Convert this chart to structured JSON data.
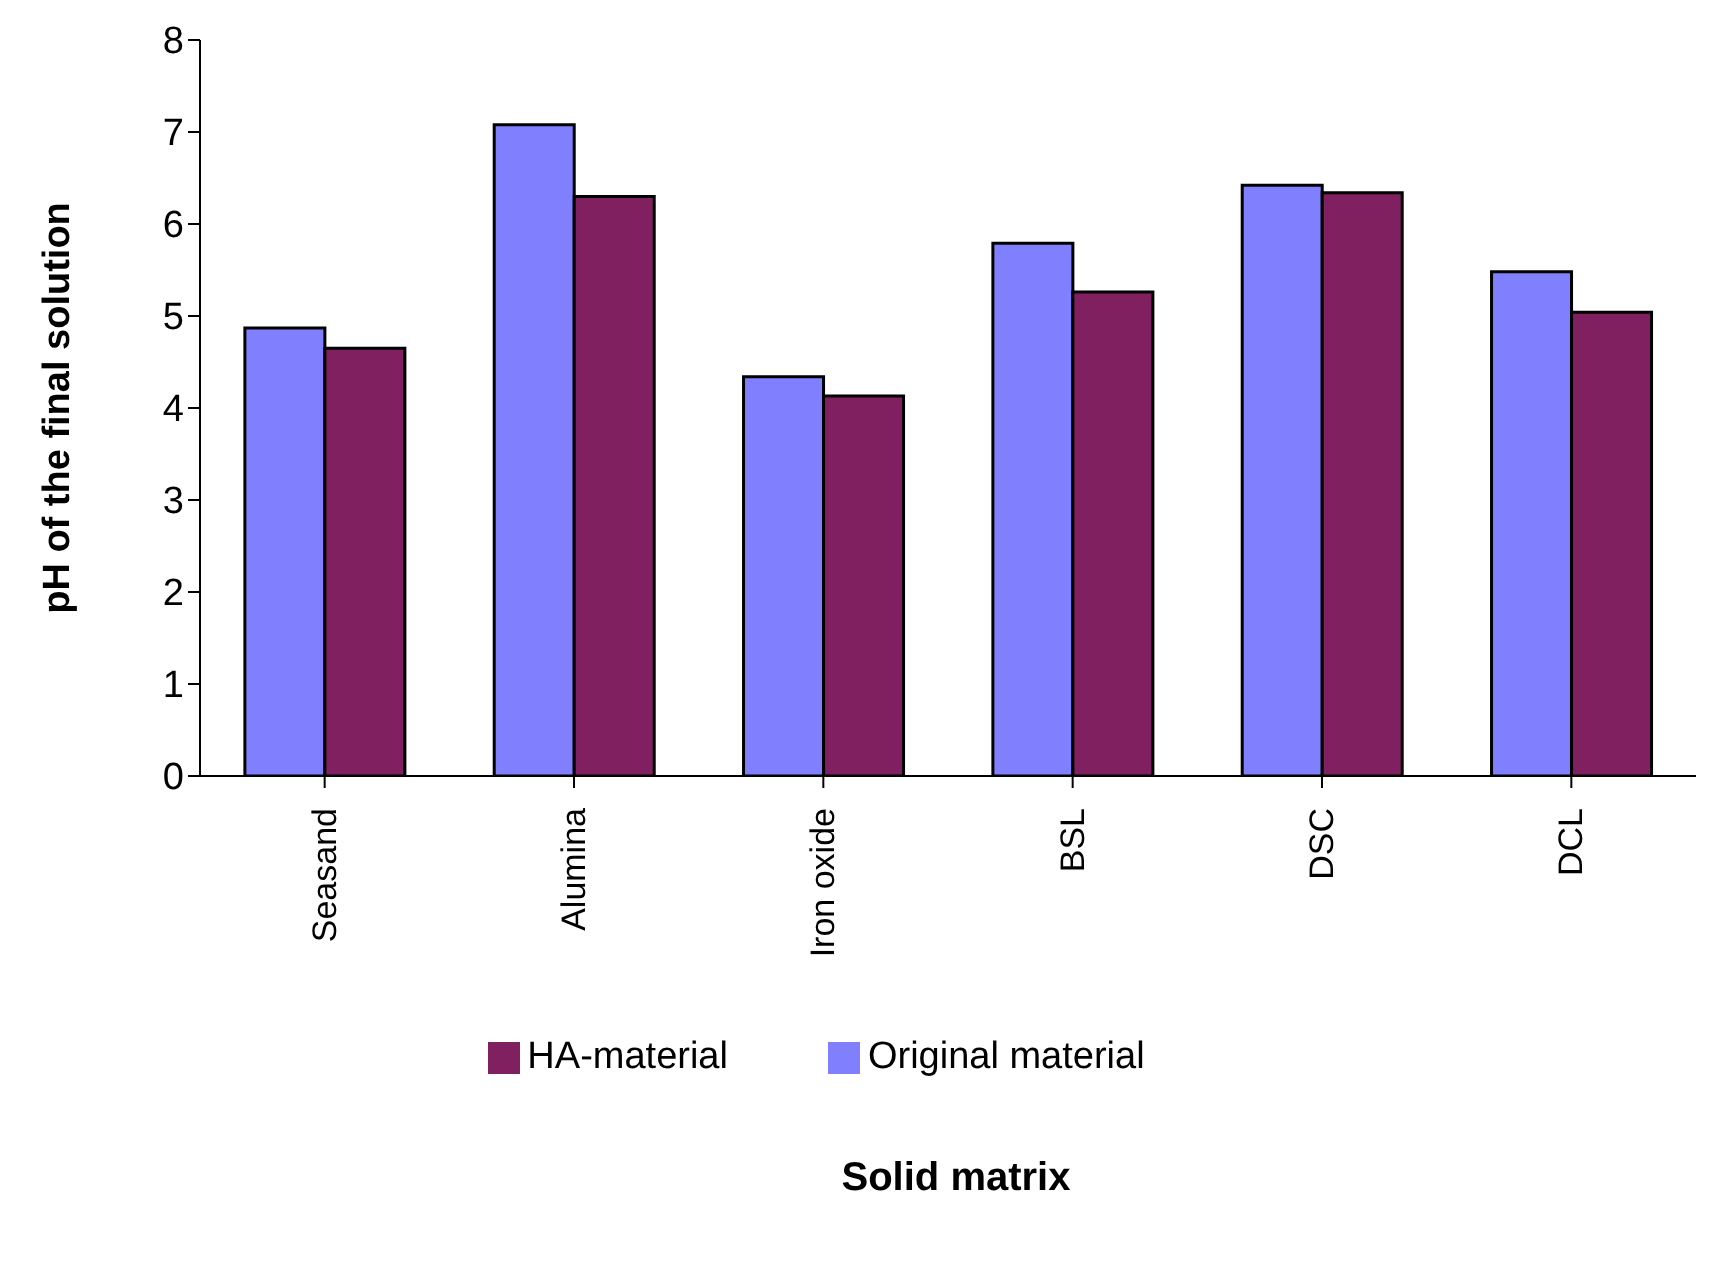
{
  "chart_data": {
    "type": "bar",
    "xlabel": "Solid matrix",
    "ylabel": "pH of the final solution",
    "categories": [
      "Seasand",
      "Alumina",
      "Iron oxide",
      "BSL",
      "DSC",
      "DCL"
    ],
    "series": [
      {
        "name": "Original material",
        "color": "#8080ff",
        "values": [
          4.87,
          7.08,
          4.34,
          5.79,
          6.42,
          5.48
        ]
      },
      {
        "name": "HA-material",
        "color": "#802060",
        "values": [
          4.65,
          6.3,
          4.13,
          5.26,
          6.34,
          5.04
        ]
      }
    ],
    "ylim": [
      0,
      8
    ],
    "yticks": [
      0,
      1,
      2,
      3,
      4,
      5,
      6,
      7,
      8
    ],
    "legend": "bottom"
  }
}
